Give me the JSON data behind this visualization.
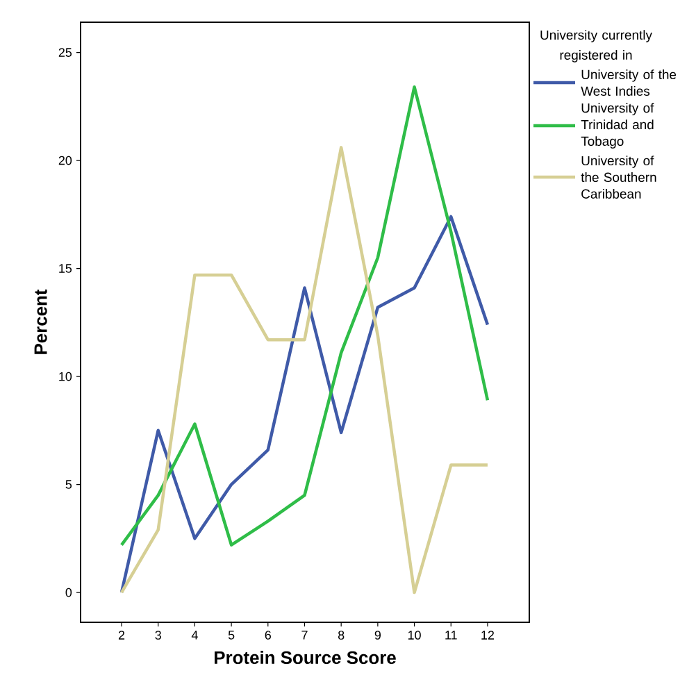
{
  "chart_data": {
    "type": "line",
    "xlabel": "Protein Source Score",
    "ylabel": "Percent",
    "legend_title": "University currently registered in",
    "x": [
      2,
      3,
      4,
      5,
      6,
      7,
      8,
      9,
      10,
      11,
      12
    ],
    "series": [
      {
        "name": "University of the West Indies",
        "color": "#3f5aa8",
        "values": [
          0,
          7.5,
          2.5,
          5.0,
          6.6,
          14.1,
          7.4,
          13.2,
          14.1,
          17.4,
          12.4
        ]
      },
      {
        "name": "University of Trinidad and Tobago",
        "color": "#2fbd48",
        "values": [
          2.2,
          4.5,
          7.8,
          2.2,
          3.3,
          4.5,
          11.1,
          15.5,
          23.4,
          16.7,
          8.9
        ]
      },
      {
        "name": "University of the Southern Caribbean",
        "color": "#d6cf94",
        "values": [
          0,
          2.9,
          14.7,
          14.7,
          11.7,
          11.7,
          20.6,
          11.9,
          0,
          5.9,
          5.9
        ]
      }
    ],
    "xlim": [
      0.88,
      13.14
    ],
    "ylim": [
      -1.38,
      26.4
    ],
    "xticks": [
      2,
      3,
      4,
      5,
      6,
      7,
      8,
      9,
      10,
      11,
      12
    ],
    "yticks": [
      0,
      5,
      10,
      15,
      20,
      25
    ],
    "grid": false,
    "legend": "right",
    "marker": "none",
    "line_style": "solid"
  }
}
